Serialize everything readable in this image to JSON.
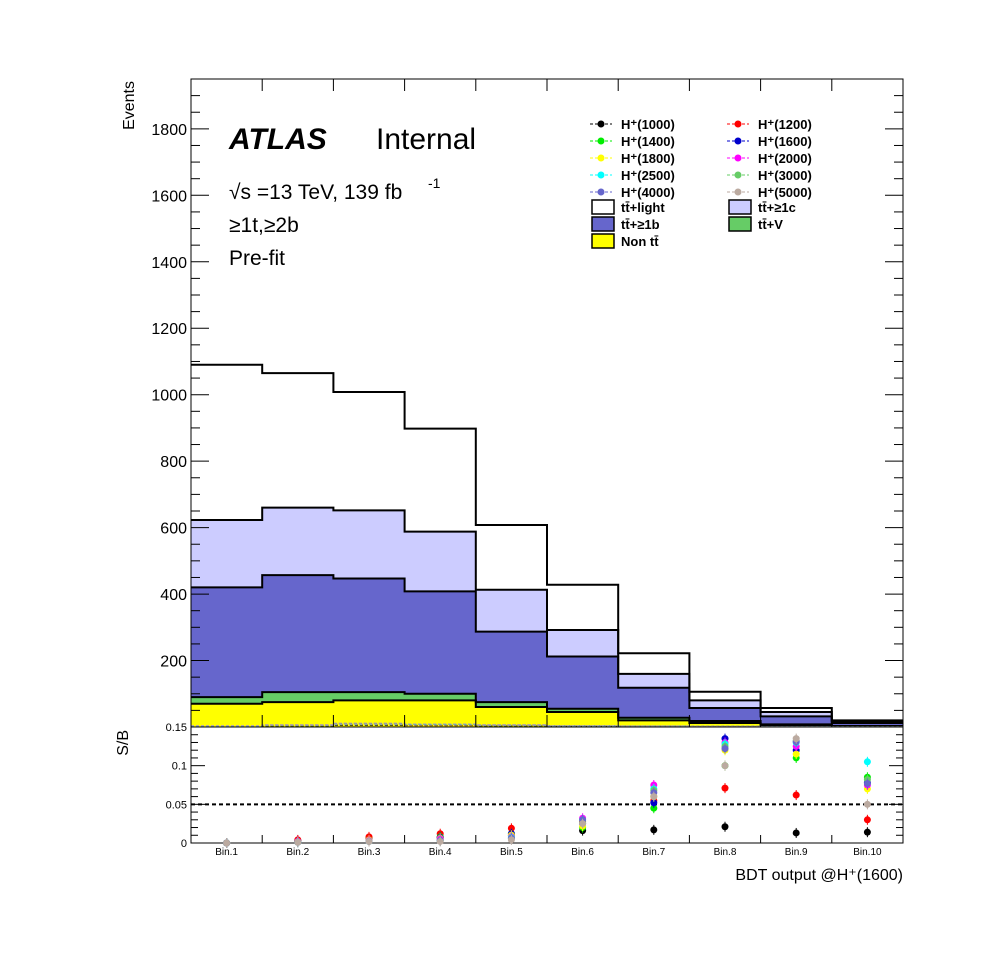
{
  "chart_data": [
    {
      "panel": "main",
      "type": "stacked-histogram",
      "ylabel": "Events",
      "ylim": [
        0,
        1950
      ],
      "y_ticks": [
        200,
        400,
        600,
        800,
        1000,
        1200,
        1400,
        1600,
        1800
      ],
      "y_tick_labels": [
        "200",
        "400",
        "600",
        "800",
        "1000",
        "1200",
        "1400",
        "1600",
        "1800"
      ],
      "categories": [
        "Bin.1",
        "Bin.2",
        "Bin.3",
        "Bin.4",
        "Bin.5",
        "Bin.6",
        "Bin.7",
        "Bin.8",
        "Bin.9",
        "Bin.10"
      ],
      "stack_order": [
        "non_tt",
        "ttV",
        "tt_ge1b",
        "tt_ge1c",
        "tt_light"
      ],
      "stack": {
        "non_tt": {
          "legend": "Non tt̄",
          "color": "#ffff00",
          "cumulative": [
            70,
            75,
            80,
            80,
            60,
            45,
            20,
            12,
            5,
            2
          ]
        },
        "ttV": {
          "legend": "tt̄+V",
          "color": "#66cc66",
          "cumulative": [
            90,
            105,
            105,
            100,
            75,
            55,
            28,
            18,
            8,
            3
          ]
        },
        "tt_ge1b": {
          "legend": "tt̄+≥1b",
          "color": "#6666cc",
          "cumulative": [
            420,
            457,
            447,
            408,
            287,
            212,
            118,
            57,
            32,
            12
          ]
        },
        "tt_ge1c": {
          "legend": "tt̄+≥1c",
          "color": "#ccccff",
          "cumulative": [
            623,
            660,
            652,
            588,
            413,
            292,
            160,
            80,
            45,
            17
          ]
        },
        "tt_light": {
          "legend": "tt̄+light",
          "color": "#ffffff",
          "cumulative": [
            1090,
            1065,
            1008,
            898,
            608,
            428,
            222,
            106,
            57,
            20
          ]
        }
      },
      "signals": [
        {
          "name": "H⁺(1000)",
          "color": "#000000"
        },
        {
          "name": "H⁺(1200)",
          "color": "#ff0000"
        },
        {
          "name": "H⁺(1400)",
          "color": "#00ee00"
        },
        {
          "name": "H⁺(1600)",
          "color": "#0000cc"
        },
        {
          "name": "H⁺(1800)",
          "color": "#ffff00"
        },
        {
          "name": "H⁺(2000)",
          "color": "#ff00ff"
        },
        {
          "name": "H⁺(2500)",
          "color": "#00ffff"
        },
        {
          "name": "H⁺(3000)",
          "color": "#66cc66"
        },
        {
          "name": "H⁺(4000)",
          "color": "#6666cc"
        },
        {
          "name": "H⁺(5000)",
          "color": "#bbaaa0"
        }
      ],
      "signal_line_levels": [
        2,
        3,
        5,
        4,
        3,
        2,
        1.5,
        1,
        0.5,
        0.2
      ],
      "legend_position": "top-right",
      "annotations": {
        "experiment": "ATLAS",
        "status": "Internal",
        "energy_lumi": "√s =13 TeV, 139 fb",
        "energy_lumi_sup": "-1",
        "region": "≥1t,≥2b",
        "stage": "Pre-fit"
      }
    },
    {
      "panel": "ratio",
      "type": "scatter",
      "ylabel": "S/B",
      "ylim": [
        0,
        0.15
      ],
      "y_ticks": [
        0,
        0.05,
        0.1,
        0.15
      ],
      "y_tick_labels": [
        "0",
        "0.05",
        "0.1",
        "0.15"
      ],
      "reference_line": 0.05,
      "xlabel": "BDT output @H⁺(1600)",
      "series": [
        {
          "name": "H⁺(1000)",
          "color": "#000000",
          "values": [
            0.0,
            0.003,
            0.006,
            0.007,
            0.01,
            0.016,
            0.017,
            0.021,
            0.013,
            0.014
          ]
        },
        {
          "name": "H⁺(1200)",
          "color": "#ff0000",
          "values": [
            0.0,
            0.004,
            0.008,
            0.012,
            0.019,
            0.028,
            0.055,
            0.071,
            0.062,
            0.03
          ]
        },
        {
          "name": "H⁺(1400)",
          "color": "#00ee00",
          "values": [
            0.0,
            0.002,
            0.004,
            0.008,
            0.012,
            0.02,
            0.045,
            0.1,
            0.11,
            0.085
          ]
        },
        {
          "name": "H⁺(1600)",
          "color": "#0000cc",
          "values": [
            0.0,
            0.002,
            0.004,
            0.007,
            0.012,
            0.025,
            0.052,
            0.135,
            0.12,
            0.078
          ]
        },
        {
          "name": "H⁺(1800)",
          "color": "#ffff00",
          "values": [
            0.0,
            0.002,
            0.004,
            0.006,
            0.01,
            0.022,
            0.06,
            0.12,
            0.115,
            0.07
          ]
        },
        {
          "name": "H⁺(2000)",
          "color": "#ff00ff",
          "values": [
            0.0,
            0.002,
            0.003,
            0.005,
            0.008,
            0.032,
            0.075,
            0.13,
            0.125,
            0.075
          ]
        },
        {
          "name": "H⁺(2500)",
          "color": "#00ffff",
          "values": [
            0.0,
            0.001,
            0.002,
            0.003,
            0.007,
            0.03,
            0.07,
            0.128,
            0.13,
            0.105
          ]
        },
        {
          "name": "H⁺(3000)",
          "color": "#66cc66",
          "values": [
            0.0,
            0.001,
            0.002,
            0.003,
            0.006,
            0.026,
            0.068,
            0.125,
            0.132,
            0.082
          ]
        },
        {
          "name": "H⁺(4000)",
          "color": "#6666cc",
          "values": [
            0.0,
            0.001,
            0.002,
            0.003,
            0.006,
            0.03,
            0.065,
            0.122,
            0.131,
            0.077
          ]
        },
        {
          "name": "H⁺(5000)",
          "color": "#bbaaa0",
          "values": [
            0.0,
            0.001,
            0.002,
            0.002,
            0.004,
            0.025,
            0.06,
            0.1,
            0.135,
            0.05
          ]
        }
      ]
    }
  ]
}
